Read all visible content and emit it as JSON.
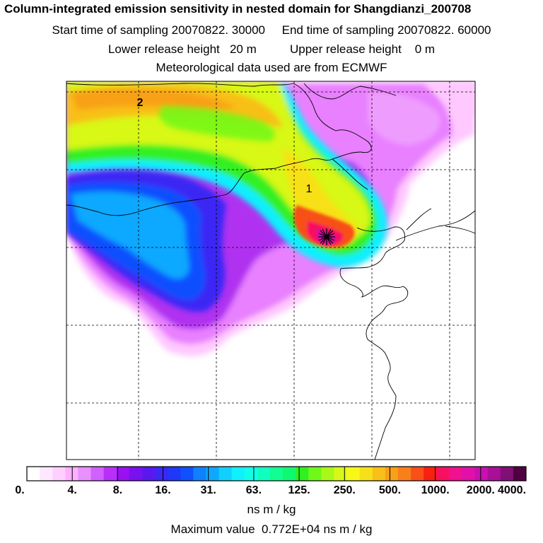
{
  "title": {
    "main": "Column-integrated emission sensitivity in nested domain for Shangdianzi_200708",
    "start_label": "Start time of sampling",
    "start_value": "20070822. 30000",
    "end_label": "End time of sampling",
    "end_value": "20070822. 60000",
    "lower_label": "Lower release height",
    "lower_value": "20 m",
    "upper_label": "Upper release height",
    "upper_value": "0 m",
    "met_line": "Meteorological data used are from ECMWF"
  },
  "map": {
    "markers": [
      {
        "label": "1"
      },
      {
        "label": "2"
      }
    ],
    "receptor_symbol": "star-icon"
  },
  "colorbar": {
    "tick_labels": [
      "0.",
      "4.",
      "8.",
      "16.",
      "31.",
      "63.",
      "125.",
      "250.",
      "500.",
      "1000.",
      "2000.",
      "4000."
    ],
    "segment_colors": [
      "#ffffff",
      "#ffe8ff",
      "#ffd0ff",
      "#ffb0ff",
      "#e890ff",
      "#d060ff",
      "#b830f8",
      "#9a10f0",
      "#7a10ee",
      "#5a18f0",
      "#3a28f4",
      "#2038f8",
      "#1050ff",
      "#1080ff",
      "#10a8ff",
      "#10d0ff",
      "#10f0ff",
      "#10ffe8",
      "#10ffc0",
      "#10ff90",
      "#10f870",
      "#30f020",
      "#70f818",
      "#a8f818",
      "#d8f818",
      "#f8f818",
      "#f8e018",
      "#f8c018",
      "#f8a018",
      "#f88018",
      "#f85018",
      "#f82010",
      "#f81060",
      "#f01090",
      "#e010a8",
      "#c810b0",
      "#a81098",
      "#801078",
      "#500040"
    ],
    "units": "ns m / kg"
  },
  "footer": {
    "max_label": "Maximum value",
    "max_value": "0.772E+04 ns m / kg"
  }
}
